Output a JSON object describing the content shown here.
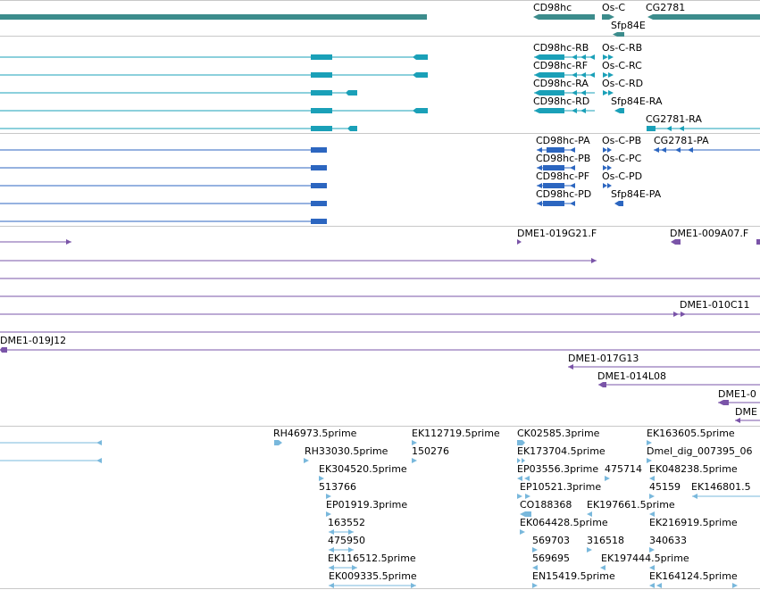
{
  "colors": {
    "genes": "#3c8c8c",
    "transcripts_a": "#1aa0b8",
    "transcripts_b": "#2c66c0",
    "clones": "#7a54a8",
    "ests": "#79b8dc",
    "divider": "#c8c8c8"
  },
  "tracks": {
    "genes": {
      "labels": [
        "CD98hc",
        "Os-C",
        "CG2781",
        "Sfp84E"
      ]
    },
    "transcripts_a": {
      "labels": [
        "CD98hc-RB",
        "CD98hc-RF",
        "CD98hc-RA",
        "CD98hc-RD",
        "Os-C-RB",
        "Os-C-RC",
        "Os-C-RD",
        "Sfp84E-RA",
        "CG2781-RA"
      ]
    },
    "transcripts_b": {
      "labels": [
        "CD98hc-PA",
        "CD98hc-PB",
        "CD98hc-PF",
        "CD98hc-PD",
        "Os-C-PB",
        "Os-C-PC",
        "Os-C-PD",
        "Sfp84E-PA",
        "CG2781-PA"
      ]
    },
    "clones": {
      "labels": [
        "DME1-019G21.F",
        "DME1-009A07.F",
        "DME1-010C11",
        "DME1-019J12",
        "DME1-017G13",
        "DME1-014L08",
        "DME1-0",
        "DME"
      ]
    },
    "ests": {
      "labels": [
        "RH46973.5prime",
        "EK112719.5prime",
        "CK02585.3prime",
        "EK163605.5prime",
        "RH33030.5prime",
        "150276",
        "EK173704.5prime",
        "Dmel_dig_007395_06",
        "EK304520.5prime",
        "EP03556.3prime",
        "475714",
        "EK048238.5prime",
        "513766",
        "EP10521.3prime",
        "45159",
        "EK146801.5",
        "EP01919.3prime",
        "CO188368",
        "EK197661.5prime",
        "163552",
        "EK064428.5prime",
        "EK216919.5prime",
        "475950",
        "569703",
        "316518",
        "340633",
        "EK116512.5prime",
        "569695",
        "EK197444.5prime",
        "EK009335.5prime",
        "EN15419.5prime",
        "EK164124.5prime"
      ]
    }
  }
}
